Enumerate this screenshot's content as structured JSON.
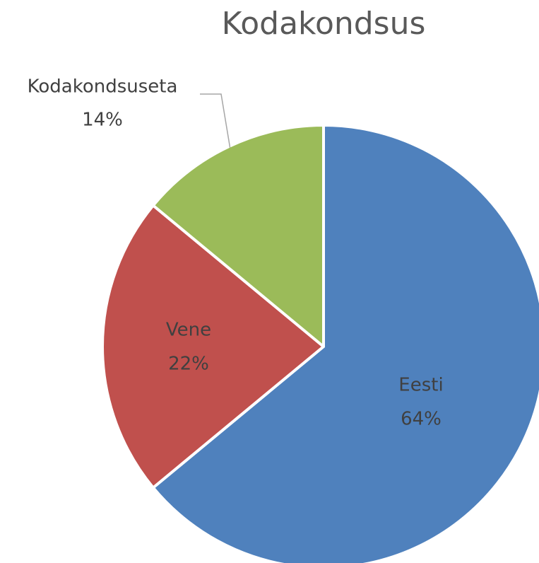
{
  "chart_data": {
    "type": "pie",
    "title": "Kodakondsus",
    "categories": [
      "Eesti",
      "Vene",
      "Kodakondsuseta"
    ],
    "values": [
      64,
      22,
      14
    ],
    "value_labels": [
      "64%",
      "22%",
      "14%"
    ],
    "colors": [
      "#4f81bd",
      "#c0504d",
      "#9bbb59"
    ]
  }
}
